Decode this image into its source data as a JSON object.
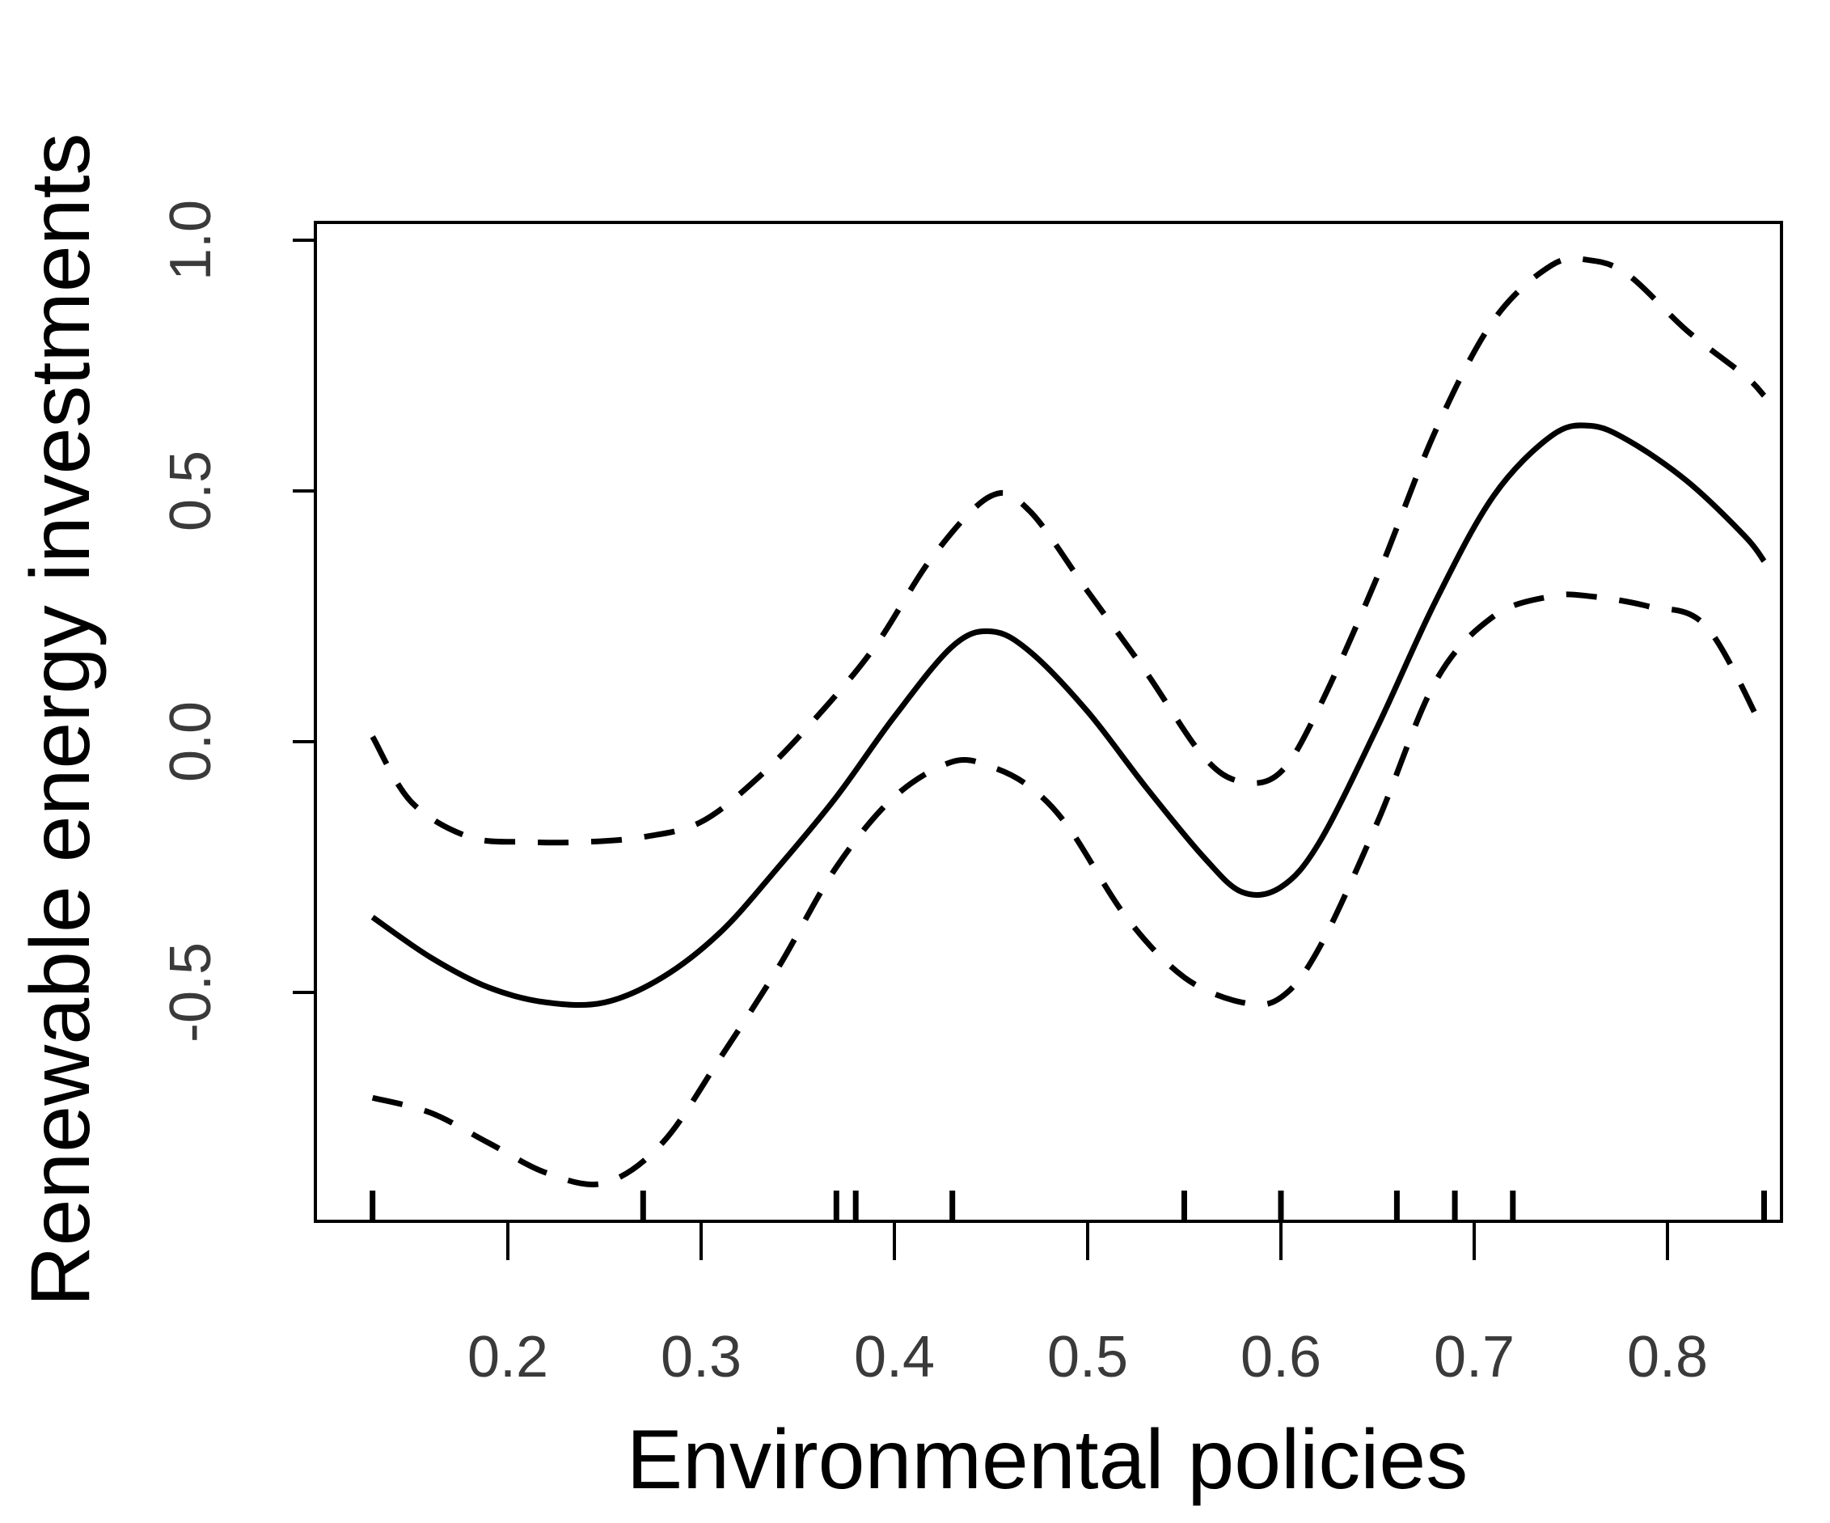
{
  "chart_data": {
    "type": "line",
    "title": "",
    "xlabel": "Environmental policies",
    "ylabel": "Renewable energy investments",
    "xlim": [
      0.1,
      0.85
    ],
    "ylim": [
      -0.95,
      1.05
    ],
    "x_ticks": [
      "0.2",
      "0.3",
      "0.4",
      "0.5",
      "0.6",
      "0.7",
      "0.8"
    ],
    "y_ticks": [
      "-0.5",
      "0.0",
      "0.5",
      "1.0"
    ],
    "grid": false,
    "legend": "none",
    "series": [
      {
        "style": "solid",
        "color": "#000000",
        "points": [
          [
            0.13,
            -0.35
          ],
          [
            0.16,
            -0.43
          ],
          [
            0.19,
            -0.49
          ],
          [
            0.22,
            -0.52
          ],
          [
            0.25,
            -0.52
          ],
          [
            0.28,
            -0.47
          ],
          [
            0.31,
            -0.38
          ],
          [
            0.34,
            -0.25
          ],
          [
            0.37,
            -0.11
          ],
          [
            0.4,
            0.05
          ],
          [
            0.43,
            0.19
          ],
          [
            0.45,
            0.22
          ],
          [
            0.47,
            0.18
          ],
          [
            0.5,
            0.06
          ],
          [
            0.53,
            -0.09
          ],
          [
            0.56,
            -0.23
          ],
          [
            0.58,
            -0.3
          ],
          [
            0.6,
            -0.29
          ],
          [
            0.62,
            -0.2
          ],
          [
            0.65,
            0.03
          ],
          [
            0.68,
            0.28
          ],
          [
            0.71,
            0.49
          ],
          [
            0.74,
            0.61
          ],
          [
            0.76,
            0.63
          ],
          [
            0.78,
            0.6
          ],
          [
            0.81,
            0.52
          ],
          [
            0.84,
            0.41
          ],
          [
            0.85,
            0.36
          ]
        ]
      },
      {
        "style": "dashed",
        "color": "#000000",
        "points": [
          [
            0.13,
            0.01
          ],
          [
            0.15,
            -0.12
          ],
          [
            0.18,
            -0.19
          ],
          [
            0.21,
            -0.2
          ],
          [
            0.24,
            -0.2
          ],
          [
            0.27,
            -0.19
          ],
          [
            0.3,
            -0.16
          ],
          [
            0.33,
            -0.07
          ],
          [
            0.36,
            0.05
          ],
          [
            0.39,
            0.19
          ],
          [
            0.42,
            0.37
          ],
          [
            0.45,
            0.49
          ],
          [
            0.47,
            0.46
          ],
          [
            0.5,
            0.3
          ],
          [
            0.53,
            0.14
          ],
          [
            0.56,
            -0.03
          ],
          [
            0.58,
            -0.08
          ],
          [
            0.6,
            -0.06
          ],
          [
            0.62,
            0.07
          ],
          [
            0.65,
            0.33
          ],
          [
            0.68,
            0.62
          ],
          [
            0.71,
            0.84
          ],
          [
            0.74,
            0.95
          ],
          [
            0.76,
            0.96
          ],
          [
            0.78,
            0.93
          ],
          [
            0.81,
            0.82
          ],
          [
            0.84,
            0.73
          ],
          [
            0.85,
            0.69
          ]
        ]
      },
      {
        "style": "dashed",
        "color": "#000000",
        "points": [
          [
            0.13,
            -0.71
          ],
          [
            0.16,
            -0.74
          ],
          [
            0.19,
            -0.8
          ],
          [
            0.22,
            -0.86
          ],
          [
            0.25,
            -0.88
          ],
          [
            0.28,
            -0.8
          ],
          [
            0.31,
            -0.63
          ],
          [
            0.34,
            -0.45
          ],
          [
            0.37,
            -0.25
          ],
          [
            0.4,
            -0.11
          ],
          [
            0.43,
            -0.04
          ],
          [
            0.45,
            -0.05
          ],
          [
            0.47,
            -0.09
          ],
          [
            0.49,
            -0.17
          ],
          [
            0.52,
            -0.35
          ],
          [
            0.55,
            -0.47
          ],
          [
            0.58,
            -0.52
          ],
          [
            0.6,
            -0.51
          ],
          [
            0.62,
            -0.41
          ],
          [
            0.65,
            -0.16
          ],
          [
            0.68,
            0.12
          ],
          [
            0.71,
            0.25
          ],
          [
            0.74,
            0.29
          ],
          [
            0.76,
            0.29
          ],
          [
            0.79,
            0.27
          ],
          [
            0.82,
            0.23
          ],
          [
            0.85,
            0.02
          ]
        ]
      }
    ],
    "rug": [
      0.13,
      0.27,
      0.37,
      0.38,
      0.43,
      0.55,
      0.6,
      0.66,
      0.69,
      0.72,
      0.85
    ]
  }
}
